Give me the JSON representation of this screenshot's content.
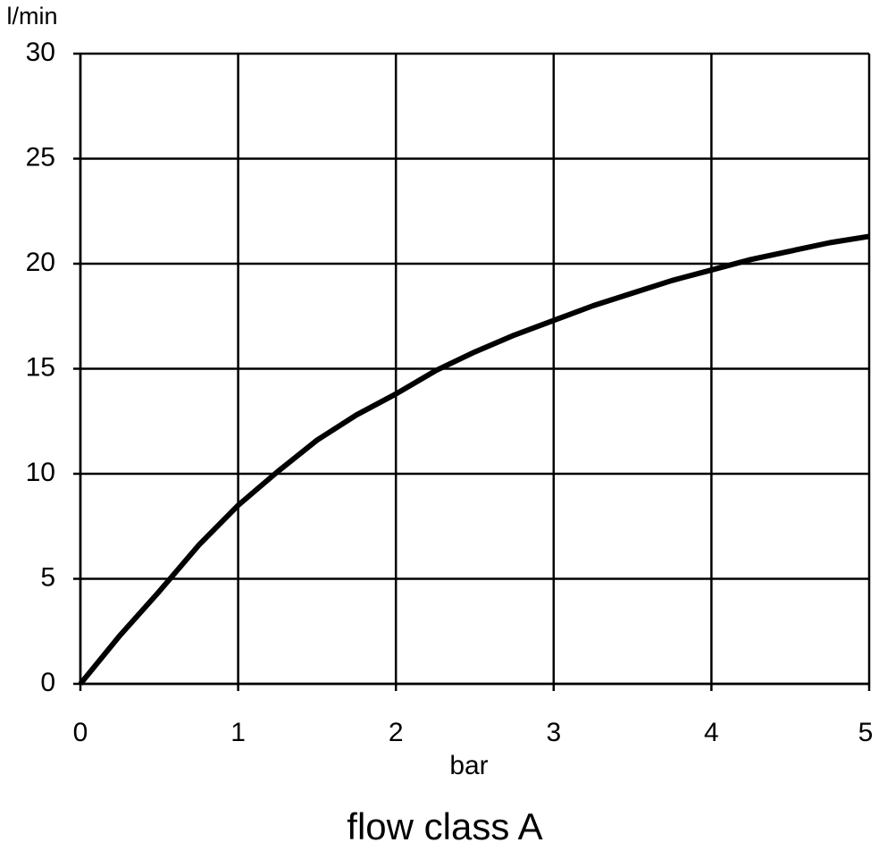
{
  "chart_data": {
    "type": "line",
    "title": "flow class A",
    "x_label": "bar",
    "y_label": "l/min",
    "x": [
      0,
      0.25,
      0.5,
      0.75,
      1,
      1.25,
      1.5,
      1.75,
      2,
      2.25,
      2.5,
      2.75,
      3,
      3.25,
      3.5,
      3.75,
      4,
      4.25,
      4.5,
      4.75,
      5
    ],
    "values": [
      0,
      2.3,
      4.4,
      6.6,
      8.5,
      10.1,
      11.6,
      12.8,
      13.8,
      14.9,
      15.8,
      16.6,
      17.3,
      18.0,
      18.6,
      19.2,
      19.7,
      20.2,
      20.6,
      21.0,
      21.3
    ],
    "color": "#000000",
    "xlim": [
      0,
      5
    ],
    "xticks": [
      0,
      1,
      2,
      3,
      4,
      5
    ],
    "ylim": [
      0,
      30
    ],
    "yticks": [
      0,
      5,
      10,
      15,
      20,
      25,
      30
    ],
    "grid": true
  }
}
